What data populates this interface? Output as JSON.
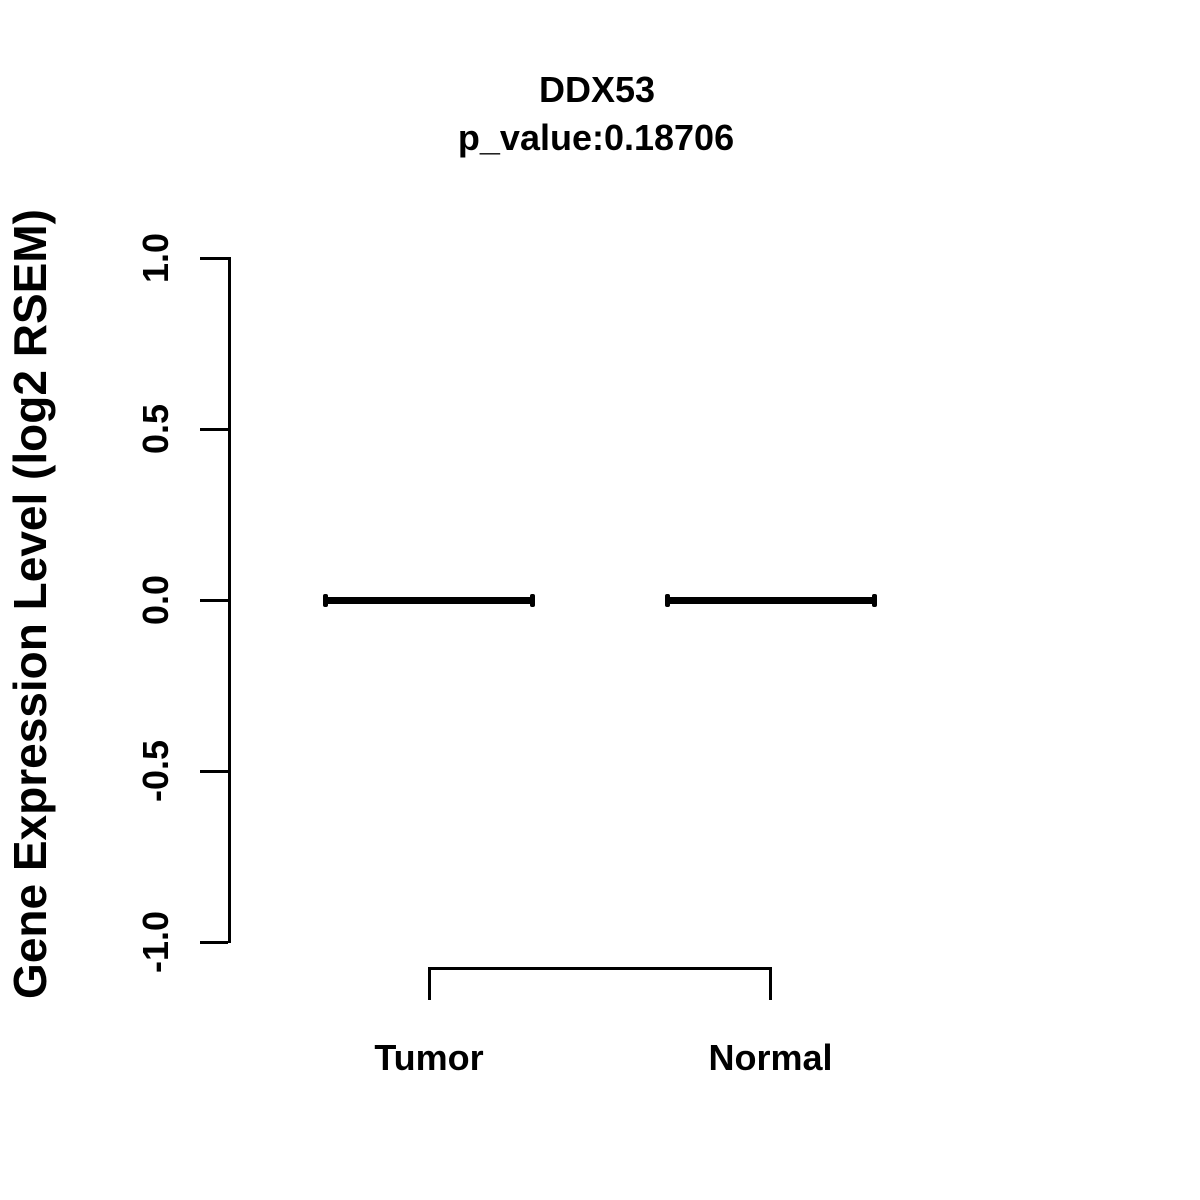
{
  "figure": {
    "background_color": "#ffffff",
    "foreground_color": "#000000"
  },
  "chart_data": {
    "type": "boxplot",
    "title": "DDX53",
    "subtitle": "p_value:0.18706",
    "p_value": 0.18706,
    "ylabel": "Gene Expression Level (log2 RSEM)",
    "xlabel": "",
    "categories": [
      "Tumor",
      "Normal"
    ],
    "groups": [
      {
        "label": "Tumor",
        "median": 0.0,
        "q1": 0.0,
        "q3": 0.0,
        "whisker_low": 0.0,
        "whisker_high": 0.0
      },
      {
        "label": "Normal",
        "median": 0.0,
        "q1": 0.0,
        "q3": 0.0,
        "whisker_low": 0.0,
        "whisker_high": 0.0
      }
    ],
    "ylim": [
      -1.0,
      1.0
    ],
    "yticks": [
      1.0,
      0.5,
      0.0,
      -0.5,
      -1.0
    ],
    "ytick_labels": [
      "1.0",
      "0.5",
      "0.0",
      "-0.5",
      "-1.0"
    ],
    "grid": false,
    "legend": "none",
    "comparison_bracket": {
      "from": "Tumor",
      "to": "Normal"
    }
  }
}
